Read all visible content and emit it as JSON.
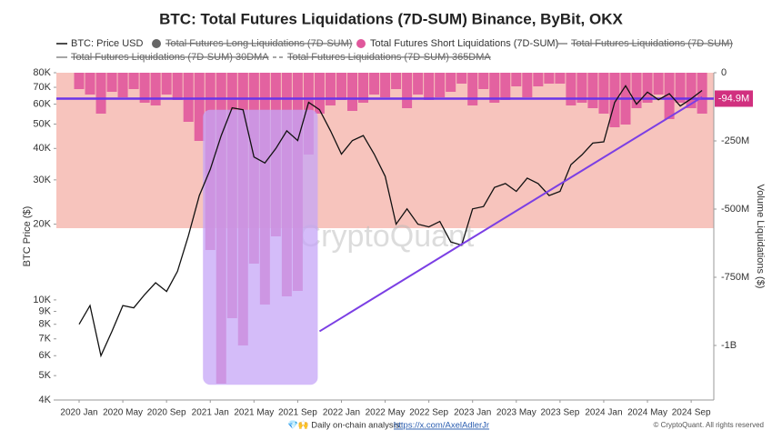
{
  "chart_data": {
    "type": "line_bar_dual",
    "title": "BTC: Total Futures Liquidations (7D-SUM) Binance, ByBit, OKX",
    "y_label": "BTC Price ($)",
    "y2_label": "Volume Liquidations ($)",
    "watermark": "CryptoQuant",
    "footer": {
      "prefix": "💎🙌 Daily on-chain analysis:",
      "link": "https://x.com/AxelAdlerJr",
      "copyright": "© CryptoQuant. All rights reserved"
    },
    "log_y": true,
    "x": [
      "2020 Jan",
      null,
      null,
      null,
      "2020 May",
      null,
      null,
      null,
      "2020 Sep",
      null,
      null,
      null,
      "2021 Jan",
      null,
      null,
      null,
      "2021 May",
      null,
      null,
      null,
      "2021 Sep",
      null,
      null,
      null,
      "2022 Jan",
      null,
      null,
      null,
      "2022 May",
      null,
      null,
      null,
      "2022 Sep",
      null,
      null,
      null,
      "2023 Jan",
      null,
      null,
      null,
      "2023 May",
      null,
      null,
      null,
      "2023 Sep",
      null,
      null,
      null,
      "2024 Jan",
      null,
      null,
      null,
      "2024 May",
      null,
      null,
      null,
      "2024 Sep",
      null
    ],
    "series": [
      {
        "name": "BTC: Price USD",
        "color": "#111111",
        "kind": "line",
        "values": [
          8000,
          9500,
          6000,
          7500,
          9500,
          9300,
          10500,
          11700,
          10800,
          13000,
          18000,
          26000,
          33000,
          45000,
          58000,
          57000,
          37000,
          35000,
          40000,
          47000,
          43000,
          61000,
          57000,
          47000,
          38000,
          43000,
          45000,
          38000,
          31000,
          20000,
          23000,
          20000,
          19500,
          20500,
          17000,
          16500,
          23000,
          23500,
          28000,
          29000,
          27000,
          30500,
          29000,
          26000,
          27000,
          34500,
          37700,
          42000,
          42500,
          61000,
          71000,
          60000,
          67000,
          62500,
          66000,
          59000,
          63000,
          68000
        ]
      },
      {
        "name": "Total Futures Long Liquidations (7D-SUM)",
        "color": "#666666",
        "kind": "circle",
        "hidden": true
      },
      {
        "name": "Total Futures Short Liquidations (7D-SUM)",
        "color": "#e0589c",
        "kind": "bar",
        "axis": "y2",
        "values": [
          -60000000,
          -80000000,
          -150000000,
          -70000000,
          -90000000,
          -60000000,
          -110000000,
          -120000000,
          -80000000,
          -100000000,
          -180000000,
          -250000000,
          -650000000,
          -1140000000,
          -900000000,
          -1000000000,
          -700000000,
          -850000000,
          -600000000,
          -820000000,
          -800000000,
          -300000000,
          -150000000,
          -120000000,
          -100000000,
          -140000000,
          -110000000,
          -80000000,
          -90000000,
          -60000000,
          -130000000,
          -80000000,
          -100000000,
          -90000000,
          -70000000,
          -40000000,
          -120000000,
          -60000000,
          -110000000,
          -100000000,
          -50000000,
          -90000000,
          -50000000,
          -40000000,
          -40000000,
          -120000000,
          -110000000,
          -130000000,
          -150000000,
          -200000000,
          -190000000,
          -130000000,
          -110000000,
          -80000000,
          -170000000,
          -110000000,
          -130000000,
          -150000000
        ]
      },
      {
        "name": "Total Futures Liquidations (7D-SUM)",
        "color": "#888888",
        "kind": "line",
        "hidden": true
      },
      {
        "name": "Total Futures Liquidations (7D-SUM) 30DMA",
        "color": "#888888",
        "kind": "line",
        "hidden": true
      },
      {
        "name": "Total Futures Liquidations (7D-SUM) 365DMA",
        "color": "#888888",
        "kind": "dash",
        "hidden": true
      }
    ],
    "ylim": [
      4000,
      80000
    ],
    "yticks": [
      {
        "value": 4000,
        "label": "4K"
      },
      {
        "value": 5000,
        "label": "5K"
      },
      {
        "value": 6000,
        "label": "6K"
      },
      {
        "value": 7000,
        "label": "7K"
      },
      {
        "value": 8000,
        "label": "8K"
      },
      {
        "value": 9000,
        "label": "9K"
      },
      {
        "value": 10000,
        "label": "10K"
      },
      {
        "value": 20000,
        "label": "20K"
      },
      {
        "value": 30000,
        "label": "30K"
      },
      {
        "value": 40000,
        "label": "40K"
      },
      {
        "value": 50000,
        "label": "50K"
      },
      {
        "value": 60000,
        "label": "60K"
      },
      {
        "value": 70000,
        "label": "70K"
      },
      {
        "value": 80000,
        "label": "80K"
      }
    ],
    "y2lim": [
      -1200000000,
      0
    ],
    "y2ticks": [
      0,
      {
        "value": -250000000,
        "label": "-250M"
      },
      {
        "value": -500000000,
        "label": "-500M"
      },
      {
        "value": -750000000,
        "label": "-750M"
      },
      {
        "value": -1000000000,
        "label": "-1B"
      }
    ],
    "band": {
      "axis": "y2",
      "range": [
        -570000000,
        0
      ],
      "color": "#f7c4bd"
    },
    "highlight_box": {
      "x_index": [
        11,
        22
      ],
      "range": [
        4600,
        57000
      ],
      "color": "#c5a6f7"
    },
    "reference_line": {
      "axis": "y2",
      "value": -94900000,
      "label": "-94.9M",
      "color": "#6a35e8",
      "label_color": "#d1307f"
    },
    "trend_line": {
      "x_index": [
        22,
        57
      ],
      "values": [
        7500,
        64000
      ],
      "color": "#7b3fe4"
    }
  }
}
